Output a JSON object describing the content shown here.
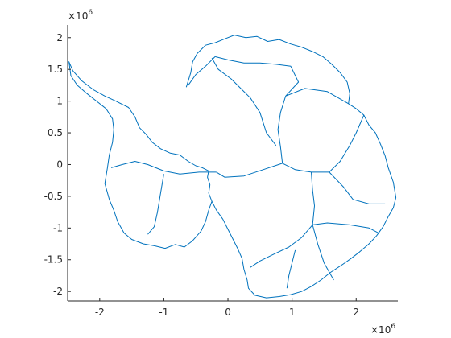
{
  "figure": {
    "background": "#ffffff",
    "axis_color": "#262626",
    "line_color": "#0072bd"
  },
  "chart_data": {
    "type": "line",
    "title": "",
    "xlabel": "",
    "ylabel": "",
    "xlim": [
      -2500000.0,
      2650000.0
    ],
    "ylim": [
      -2150000.0,
      2200000.0
    ],
    "grid": false,
    "box": "left-bottom",
    "xticks": [
      -2000000.0,
      -1000000.0,
      0,
      1000000.0,
      2000000.0
    ],
    "xtick_labels": [
      "-2",
      "-1",
      "0",
      "1",
      "2"
    ],
    "yticks": [
      -2000000.0,
      -1500000.0,
      -1000000.0,
      -500000.0,
      0,
      500000.0,
      1000000.0,
      1500000.0,
      2000000.0
    ],
    "ytick_labels": [
      "-2",
      "-1.5",
      "-1",
      "-0.5",
      "0",
      "0.5",
      "1",
      "1.5",
      "2"
    ],
    "x_exponent_base": "×10",
    "x_exponent_power": "6",
    "y_exponent_base": "×10",
    "y_exponent_power": "6",
    "series": [
      {
        "values": [
          [
            -650000.0,
            1220000.0
          ],
          [
            -580000.0,
            1450000.0
          ],
          [
            -550000.0,
            1620000.0
          ],
          [
            -480000.0,
            1750000.0
          ],
          [
            -350000.0,
            1880000.0
          ],
          [
            -200000.0,
            1920000.0
          ],
          [
            -50000.0,
            1980000.0
          ],
          [
            100000.0,
            2040000.0
          ],
          [
            280000.0,
            2000000.0
          ],
          [
            450000.0,
            2020000.0
          ],
          [
            620000.0,
            1940000.0
          ],
          [
            800000.0,
            1970000.0
          ],
          [
            980000.0,
            1900000.0
          ],
          [
            1150000.0,
            1850000.0
          ],
          [
            1320000.0,
            1780000.0
          ],
          [
            1480000.0,
            1700000.0
          ],
          [
            1620000.0,
            1580000.0
          ],
          [
            1750000.0,
            1450000.0
          ],
          [
            1860000.0,
            1300000.0
          ],
          [
            1900000.0,
            1120000.0
          ],
          [
            1880000.0,
            960000.0
          ],
          [
            2000000.0,
            880000.0
          ],
          [
            2120000.0,
            780000.0
          ],
          [
            2200000.0,
            620000.0
          ],
          [
            2300000.0,
            500000.0
          ],
          [
            2380000.0,
            320000.0
          ],
          [
            2450000.0,
            140000.0
          ],
          [
            2500000.0,
            -50000.0
          ],
          [
            2580000.0,
            -280000.0
          ],
          [
            2620000.0,
            -520000.0
          ],
          [
            2580000.0,
            -680000.0
          ],
          [
            2500000.0,
            -820000.0
          ],
          [
            2420000.0,
            -980000.0
          ],
          [
            2320000.0,
            -1120000.0
          ],
          [
            2200000.0,
            -1250000.0
          ],
          [
            2050000.0,
            -1380000.0
          ],
          [
            1920000.0,
            -1480000.0
          ],
          [
            1780000.0,
            -1580000.0
          ],
          [
            1600000.0,
            -1700000.0
          ],
          [
            1450000.0,
            -1820000.0
          ],
          [
            1300000.0,
            -1920000.0
          ],
          [
            1150000.0,
            -2000000.0
          ],
          [
            980000.0,
            -2050000.0
          ],
          [
            800000.0,
            -2080000.0
          ],
          [
            600000.0,
            -2100000.0
          ],
          [
            420000.0,
            -2060000.0
          ],
          [
            320000.0,
            -1950000.0
          ],
          [
            300000.0,
            -1820000.0
          ],
          [
            250000.0,
            -1650000.0
          ],
          [
            220000.0,
            -1480000.0
          ],
          [
            150000.0,
            -1320000.0
          ],
          [
            80000.0,
            -1180000.0
          ],
          [
            0.0,
            -1020000.0
          ],
          [
            -80000.0,
            -860000.0
          ],
          [
            -180000.0,
            -720000.0
          ],
          [
            -250000.0,
            -580000.0
          ],
          [
            -300000.0,
            -450000.0
          ],
          [
            -280000.0,
            -320000.0
          ],
          [
            -320000.0,
            -200000.0
          ],
          [
            -300000.0,
            -100000.0
          ],
          [
            -400000.0,
            -50000.0
          ],
          [
            -500000.0,
            -20000.0
          ],
          [
            -620000.0,
            50000.0
          ],
          [
            -750000.0,
            150000.0
          ],
          [
            -900000.0,
            180000.0
          ],
          [
            -1050000.0,
            250000.0
          ],
          [
            -1180000.0,
            350000.0
          ],
          [
            -1280000.0,
            480000.0
          ],
          [
            -1380000.0,
            580000.0
          ],
          [
            -1450000.0,
            750000.0
          ],
          [
            -1550000.0,
            900000.0
          ],
          [
            -1750000.0,
            1000000.0
          ],
          [
            -1920000.0,
            1080000.0
          ],
          [
            -2100000.0,
            1180000.0
          ],
          [
            -2280000.0,
            1320000.0
          ],
          [
            -2420000.0,
            1480000.0
          ],
          [
            -2480000.0,
            1620000.0
          ],
          [
            -2450000.0,
            1400000.0
          ],
          [
            -2350000.0,
            1250000.0
          ],
          [
            -2200000.0,
            1120000.0
          ],
          [
            -2050000.0,
            1000000.0
          ],
          [
            -1900000.0,
            880000.0
          ],
          [
            -1800000.0,
            720000.0
          ],
          [
            -1780000.0,
            550000.0
          ],
          [
            -1800000.0,
            350000.0
          ],
          [
            -1850000.0,
            150000.0
          ],
          [
            -1880000.0,
            -50000.0
          ],
          [
            -1920000.0,
            -300000.0
          ],
          [
            -1850000.0,
            -550000.0
          ],
          [
            -1780000.0,
            -720000.0
          ],
          [
            -1720000.0,
            -900000.0
          ],
          [
            -1620000.0,
            -1080000.0
          ],
          [
            -1500000.0,
            -1180000.0
          ],
          [
            -1320000.0,
            -1250000.0
          ],
          [
            -1150000.0,
            -1280000.0
          ],
          [
            -980000.0,
            -1320000.0
          ],
          [
            -820000.0,
            -1260000.0
          ],
          [
            -680000.0,
            -1300000.0
          ],
          [
            -550000.0,
            -1200000.0
          ],
          [
            -420000.0,
            -1050000.0
          ],
          [
            -350000.0,
            -900000.0
          ],
          [
            -300000.0,
            -720000.0
          ],
          [
            -250000.0,
            -580000.0
          ]
        ]
      },
      {
        "values": [
          [
            -200000.0,
            1700000.0
          ],
          [
            0.0,
            1650000.0
          ],
          [
            250000.0,
            1600000.0
          ],
          [
            500000.0,
            1600000.0
          ],
          [
            750000.0,
            1580000.0
          ],
          [
            980000.0,
            1550000.0
          ],
          [
            1100000.0,
            1300000.0
          ],
          [
            900000.0,
            1080000.0
          ],
          [
            820000.0,
            820000.0
          ],
          [
            780000.0,
            550000.0
          ],
          [
            820000.0,
            280000.0
          ],
          [
            850000.0,
            20000.0
          ]
        ]
      },
      {
        "values": [
          [
            -200000.0,
            1700000.0
          ],
          [
            -350000.0,
            1550000.0
          ],
          [
            -500000.0,
            1420000.0
          ],
          [
            -620000.0,
            1250000.0
          ]
        ]
      },
      {
        "values": [
          [
            -250000.0,
            1680000.0
          ],
          [
            -150000.0,
            1500000.0
          ],
          [
            50000.0,
            1350000.0
          ],
          [
            200000.0,
            1200000.0
          ],
          [
            350000.0,
            1050000.0
          ],
          [
            500000.0,
            820000.0
          ],
          [
            600000.0,
            500000.0
          ],
          [
            750000.0,
            300000.0
          ]
        ]
      },
      {
        "values": [
          [
            900000.0,
            1080000.0
          ],
          [
            1200000.0,
            1200000.0
          ],
          [
            1550000.0,
            1150000.0
          ],
          [
            1880000.0,
            960000.0
          ]
        ]
      },
      {
        "values": [
          [
            850000.0,
            20000.0
          ],
          [
            1050000.0,
            -80000.0
          ],
          [
            1300000.0,
            -120000.0
          ],
          [
            1580000.0,
            -120000.0
          ]
        ]
      },
      {
        "values": [
          [
            1580000.0,
            -120000.0
          ],
          [
            1750000.0,
            50000.0
          ],
          [
            1900000.0,
            300000.0
          ],
          [
            2000000.0,
            500000.0
          ],
          [
            2120000.0,
            780000.0
          ]
        ]
      },
      {
        "values": [
          [
            1580000.0,
            -120000.0
          ],
          [
            1800000.0,
            -350000.0
          ],
          [
            1950000.0,
            -550000.0
          ],
          [
            2200000.0,
            -620000.0
          ],
          [
            2450000.0,
            -620000.0
          ]
        ]
      },
      {
        "values": [
          [
            1300000.0,
            -120000.0
          ],
          [
            1320000.0,
            -400000.0
          ],
          [
            1350000.0,
            -650000.0
          ],
          [
            1320000.0,
            -950000.0
          ]
        ]
      },
      {
        "values": [
          [
            1320000.0,
            -950000.0
          ],
          [
            1550000.0,
            -920000.0
          ],
          [
            1900000.0,
            -950000.0
          ],
          [
            2200000.0,
            -1000000.0
          ],
          [
            2350000.0,
            -1080000.0
          ]
        ]
      },
      {
        "values": [
          [
            1320000.0,
            -950000.0
          ],
          [
            1150000.0,
            -1150000.0
          ],
          [
            950000.0,
            -1300000.0
          ],
          [
            700000.0,
            -1420000.0
          ],
          [
            500000.0,
            -1520000.0
          ],
          [
            350000.0,
            -1620000.0
          ]
        ]
      },
      {
        "values": [
          [
            1320000.0,
            -950000.0
          ],
          [
            1400000.0,
            -1250000.0
          ],
          [
            1500000.0,
            -1550000.0
          ],
          [
            1650000.0,
            -1820000.0
          ]
        ]
      },
      {
        "values": [
          [
            850000.0,
            20000.0
          ],
          [
            550000.0,
            -80000.0
          ],
          [
            250000.0,
            -180000.0
          ],
          [
            -50000.0,
            -200000.0
          ],
          [
            -180000.0,
            -120000.0
          ]
        ]
      },
      {
        "values": [
          [
            -180000.0,
            -120000.0
          ],
          [
            -450000.0,
            -120000.0
          ],
          [
            -750000.0,
            -150000.0
          ],
          [
            -1000000.0,
            -100000.0
          ],
          [
            -1250000.0,
            0.0
          ],
          [
            -1450000.0,
            50000.0
          ],
          [
            -1650000.0,
            0.0
          ],
          [
            -1820000.0,
            -50000.0
          ]
        ]
      },
      {
        "values": [
          [
            -1000000.0,
            -150000.0
          ],
          [
            -1050000.0,
            -450000.0
          ],
          [
            -1100000.0,
            -750000.0
          ],
          [
            -1150000.0,
            -980000.0
          ],
          [
            -1250000.0,
            -1100000.0
          ]
        ]
      },
      {
        "values": [
          [
            1050000.0,
            -1350000.0
          ],
          [
            1000000.0,
            -1550000.0
          ],
          [
            950000.0,
            -1750000.0
          ],
          [
            920000.0,
            -1950000.0
          ]
        ]
      }
    ]
  }
}
